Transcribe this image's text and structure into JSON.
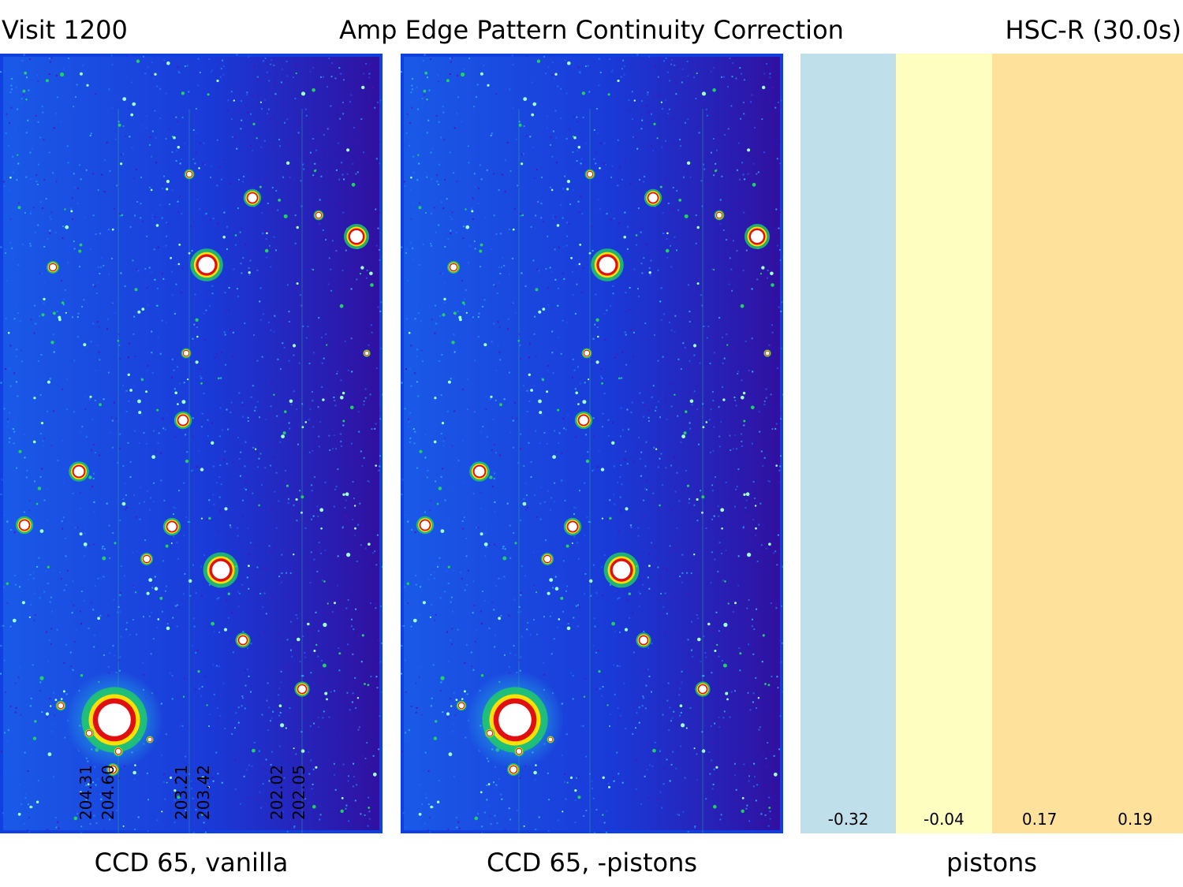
{
  "header": {
    "left": "Visit 1200",
    "center": "Amp Edge Pattern Continuity Correction",
    "right": "HSC-R (30.0s)"
  },
  "panels": [
    {
      "caption": "CCD 65, vanilla"
    },
    {
      "caption": "CCD 65, -pistons"
    },
    {
      "caption": "pistons"
    }
  ],
  "edge_labels": [
    "204.31",
    "204.60",
    "203.21",
    "203.42",
    "202.02",
    "202.05"
  ],
  "pistons": [
    {
      "value": "-0.32",
      "color": "#bfe0ea"
    },
    {
      "value": "-0.04",
      "color": "#fffec1"
    },
    {
      "value": "0.17",
      "color": "#fee29b"
    },
    {
      "value": "0.19",
      "color": "#fee29b"
    }
  ],
  "colors": {
    "image_background": "#1040e0",
    "background_dark": "#3010a0",
    "star_core": "#ffffff",
    "star_ring_red": "#e01010",
    "star_ring_yellow": "#ffe000",
    "star_ring_green": "#20d060",
    "star_halo_cyan": "#20a0e0"
  }
}
